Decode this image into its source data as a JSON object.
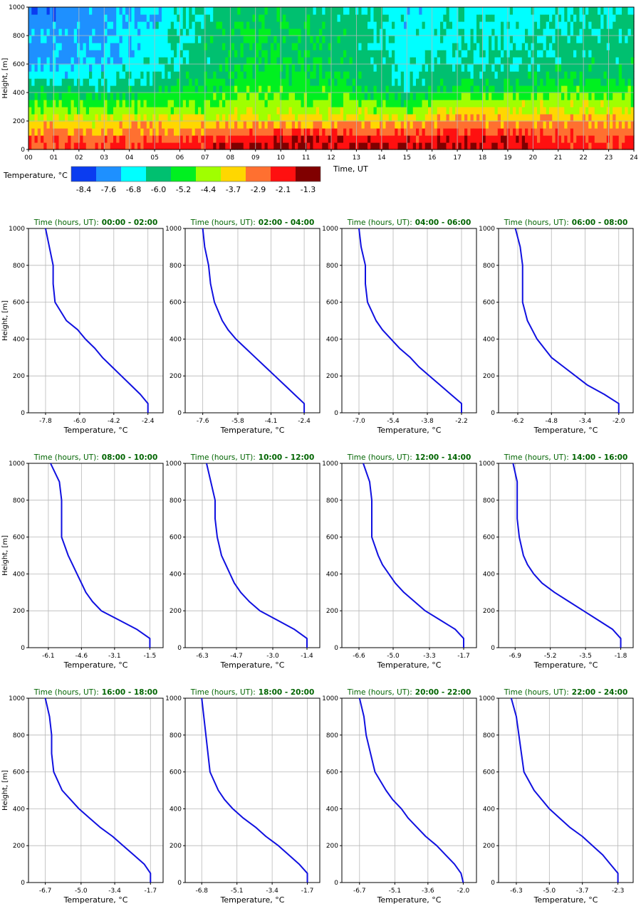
{
  "chart_data": [
    {
      "type": "heatmap",
      "ylabel": "Height, [m]",
      "xlabel": "Time, UT",
      "x_ticks": [
        "00",
        "01",
        "02",
        "03",
        "04",
        "05",
        "06",
        "07",
        "08",
        "09",
        "10",
        "11",
        "12",
        "13",
        "14",
        "15",
        "16",
        "17",
        "18",
        "19",
        "20",
        "21",
        "22",
        "23",
        "24"
      ],
      "y_ticks": [
        "0",
        "200",
        "400",
        "600",
        "800",
        "1000"
      ],
      "xlim": [
        0,
        24
      ],
      "ylim": [
        0,
        1000
      ],
      "grid": true,
      "colorbar": {
        "label": "Temperature, °C",
        "colors": [
          "#0a3cf0",
          "#1e90ff",
          "#00ffff",
          "#00c070",
          "#00f020",
          "#a0ff00",
          "#ffd700",
          "#ff7030",
          "#ff1010",
          "#800000"
        ],
        "tick_labels": [
          "-8.4",
          "-7.6",
          "-6.8",
          "-6.0",
          "-5.2",
          "-4.4",
          "-3.7",
          "-2.9",
          "-2.1",
          "-1.3"
        ]
      },
      "profile_hours": [
        1,
        3,
        5,
        7,
        9,
        11,
        13,
        15,
        17,
        19,
        21,
        23
      ],
      "heights": [
        0,
        50,
        100,
        150,
        200,
        250,
        300,
        350,
        400,
        450,
        500,
        600,
        700,
        800,
        900,
        1000
      ]
    },
    {
      "type": "line",
      "title_label": "Time (hours, UT):",
      "title_value": "00:00 - 02:00",
      "xlabel": "Temperature, °C",
      "ylabel": "Height, [m]",
      "x_ticks": [
        "-7.8",
        "-6.0",
        "-4.2",
        "-2.4"
      ],
      "xlim": [
        -8.7,
        -1.6
      ],
      "ylim": [
        0,
        1000
      ],
      "series": [
        {
          "name": "profile",
          "color": "#1010e0",
          "temperature": [
            -2.4,
            -2.4,
            -2.8,
            -3.3,
            -3.8,
            -4.3,
            -4.8,
            -5.2,
            -5.7,
            -6.1,
            -6.7,
            -7.3,
            -7.4,
            -7.4,
            -7.6,
            -7.8
          ],
          "height": [
            0,
            50,
            100,
            150,
            200,
            250,
            300,
            350,
            400,
            450,
            500,
            600,
            700,
            800,
            900,
            1000
          ]
        }
      ]
    },
    {
      "type": "line",
      "title_label": "Time (hours, UT):",
      "title_value": "02:00 - 04:00",
      "xlabel": "Temperature, °C",
      "ylabel": "Height, [m]",
      "x_ticks": [
        "-7.6",
        "-5.8",
        "-4.1",
        "-2.4"
      ],
      "xlim": [
        -8.5,
        -1.6
      ],
      "ylim": [
        0,
        1000
      ],
      "series": [
        {
          "name": "profile",
          "color": "#1010e0",
          "temperature": [
            -2.4,
            -2.4,
            -2.9,
            -3.4,
            -3.9,
            -4.4,
            -4.9,
            -5.4,
            -5.9,
            -6.3,
            -6.6,
            -7.0,
            -7.2,
            -7.3,
            -7.5,
            -7.6
          ],
          "height": [
            0,
            50,
            100,
            150,
            200,
            250,
            300,
            350,
            400,
            450,
            500,
            600,
            700,
            800,
            900,
            1000
          ]
        }
      ]
    },
    {
      "type": "line",
      "title_label": "Time (hours, UT):",
      "title_value": "04:00 - 06:00",
      "xlabel": "Temperature, °C",
      "ylabel": "Height, [m]",
      "x_ticks": [
        "-7.0",
        "-5.4",
        "-3.8",
        "-2.2"
      ],
      "xlim": [
        -7.8,
        -1.5
      ],
      "ylim": [
        0,
        1000
      ],
      "series": [
        {
          "name": "profile",
          "color": "#1010e0",
          "temperature": [
            -2.2,
            -2.2,
            -2.7,
            -3.2,
            -3.7,
            -4.2,
            -4.6,
            -5.1,
            -5.5,
            -5.9,
            -6.2,
            -6.6,
            -6.7,
            -6.7,
            -6.9,
            -7.0
          ],
          "height": [
            0,
            50,
            100,
            150,
            200,
            250,
            300,
            350,
            400,
            450,
            500,
            600,
            700,
            800,
            900,
            1000
          ]
        }
      ]
    },
    {
      "type": "line",
      "title_label": "Time (hours, UT):",
      "title_value": "06:00 - 08:00",
      "xlabel": "Temperature, °C",
      "ylabel": "Height, [m]",
      "x_ticks": [
        "-6.2",
        "-4.8",
        "-3.4",
        "-2.0"
      ],
      "xlim": [
        -7.0,
        -1.4
      ],
      "ylim": [
        0,
        1000
      ],
      "series": [
        {
          "name": "profile",
          "color": "#1010e0",
          "temperature": [
            -2.0,
            -2.0,
            -2.6,
            -3.3,
            -3.8,
            -4.3,
            -4.8,
            -5.1,
            -5.4,
            -5.6,
            -5.8,
            -6.0,
            -6.0,
            -6.0,
            -6.1,
            -6.3
          ],
          "height": [
            0,
            50,
            100,
            150,
            200,
            250,
            300,
            350,
            400,
            450,
            500,
            600,
            700,
            800,
            900,
            1000
          ]
        }
      ]
    },
    {
      "type": "line",
      "title_label": "Time (hours, UT):",
      "title_value": "08:00 - 10:00",
      "xlabel": "Temperature, °C",
      "ylabel": "Height, [m]",
      "x_ticks": [
        "-6.1",
        "-4.6",
        "-3.1",
        "-1.5"
      ],
      "xlim": [
        -7.0,
        -0.9
      ],
      "ylim": [
        0,
        1000
      ],
      "series": [
        {
          "name": "profile",
          "color": "#1010e0",
          "temperature": [
            -1.5,
            -1.5,
            -2.1,
            -2.9,
            -3.7,
            -4.1,
            -4.4,
            -4.6,
            -4.8,
            -5.0,
            -5.2,
            -5.5,
            -5.5,
            -5.5,
            -5.6,
            -6.0
          ],
          "height": [
            0,
            50,
            100,
            150,
            200,
            250,
            300,
            350,
            400,
            450,
            500,
            600,
            700,
            800,
            900,
            1000
          ]
        }
      ]
    },
    {
      "type": "line",
      "title_label": "Time (hours, UT):",
      "title_value": "10:00 - 12:00",
      "xlabel": "Temperature, °C",
      "ylabel": "Height, [m]",
      "x_ticks": [
        "-6.3",
        "-4.7",
        "-3.0",
        "-1.4"
      ],
      "xlim": [
        -7.1,
        -0.8
      ],
      "ylim": [
        0,
        1000
      ],
      "series": [
        {
          "name": "profile",
          "color": "#1010e0",
          "temperature": [
            -1.4,
            -1.4,
            -2.0,
            -2.8,
            -3.6,
            -4.1,
            -4.5,
            -4.8,
            -5.0,
            -5.2,
            -5.4,
            -5.6,
            -5.7,
            -5.7,
            -5.9,
            -6.1
          ],
          "height": [
            0,
            50,
            100,
            150,
            200,
            250,
            300,
            350,
            400,
            450,
            500,
            600,
            700,
            800,
            900,
            1000
          ]
        }
      ]
    },
    {
      "type": "line",
      "title_label": "Time (hours, UT):",
      "title_value": "12:00 - 14:00",
      "xlabel": "Temperature, °C",
      "ylabel": "Height, [m]",
      "x_ticks": [
        "-6.6",
        "-5.0",
        "-3.3",
        "-1.7"
      ],
      "xlim": [
        -7.4,
        -1.1
      ],
      "ylim": [
        0,
        1000
      ],
      "series": [
        {
          "name": "profile",
          "color": "#1010e0",
          "temperature": [
            -1.7,
            -1.7,
            -2.1,
            -2.8,
            -3.5,
            -4.0,
            -4.5,
            -4.9,
            -5.2,
            -5.5,
            -5.7,
            -6.0,
            -6.0,
            -6.0,
            -6.1,
            -6.4
          ],
          "height": [
            0,
            50,
            100,
            150,
            200,
            250,
            300,
            350,
            400,
            450,
            500,
            600,
            700,
            800,
            900,
            1000
          ]
        }
      ]
    },
    {
      "type": "line",
      "title_label": "Time (hours, UT):",
      "title_value": "14:00 - 16:00",
      "xlabel": "Temperature, °C",
      "ylabel": "Height, [m]",
      "x_ticks": [
        "-6.9",
        "-5.2",
        "-3.5",
        "-1.8"
      ],
      "xlim": [
        -7.7,
        -1.2
      ],
      "ylim": [
        0,
        1000
      ],
      "series": [
        {
          "name": "profile",
          "color": "#1010e0",
          "temperature": [
            -1.8,
            -1.8,
            -2.2,
            -2.9,
            -3.6,
            -4.3,
            -5.0,
            -5.6,
            -6.0,
            -6.3,
            -6.5,
            -6.7,
            -6.8,
            -6.8,
            -6.8,
            -7.0
          ],
          "height": [
            0,
            50,
            100,
            150,
            200,
            250,
            300,
            350,
            400,
            450,
            500,
            600,
            700,
            800,
            900,
            1000
          ]
        }
      ]
    },
    {
      "type": "line",
      "title_label": "Time (hours, UT):",
      "title_value": "16:00 - 18:00",
      "xlabel": "Temperature, °C",
      "ylabel": "Height, [m]",
      "x_ticks": [
        "-6.7",
        "-5.0",
        "-3.4",
        "-1.7"
      ],
      "xlim": [
        -7.5,
        -1.1
      ],
      "ylim": [
        0,
        1000
      ],
      "series": [
        {
          "name": "profile",
          "color": "#1010e0",
          "temperature": [
            -1.7,
            -1.7,
            -2.0,
            -2.5,
            -3.0,
            -3.5,
            -4.1,
            -4.6,
            -5.1,
            -5.5,
            -5.9,
            -6.3,
            -6.4,
            -6.4,
            -6.5,
            -6.7
          ],
          "height": [
            0,
            50,
            100,
            150,
            200,
            250,
            300,
            350,
            400,
            450,
            500,
            600,
            700,
            800,
            900,
            1000
          ]
        }
      ]
    },
    {
      "type": "line",
      "title_label": "Time (hours, UT):",
      "title_value": "18:00 - 20:00",
      "xlabel": "Temperature, °C",
      "ylabel": "Height, [m]",
      "x_ticks": [
        "-6.8",
        "-5.1",
        "-3.4",
        "-1.7"
      ],
      "xlim": [
        -7.6,
        -1.1
      ],
      "ylim": [
        0,
        1000
      ],
      "series": [
        {
          "name": "profile",
          "color": "#1010e0",
          "temperature": [
            -1.7,
            -1.7,
            -2.1,
            -2.6,
            -3.1,
            -3.7,
            -4.2,
            -4.8,
            -5.3,
            -5.7,
            -6.0,
            -6.4,
            -6.5,
            -6.6,
            -6.7,
            -6.8
          ],
          "height": [
            0,
            50,
            100,
            150,
            200,
            250,
            300,
            350,
            400,
            450,
            500,
            600,
            700,
            800,
            900,
            1000
          ]
        }
      ]
    },
    {
      "type": "line",
      "title_label": "Time (hours, UT):",
      "title_value": "20:00 - 22:00",
      "xlabel": "Temperature, °C",
      "ylabel": "Height, [m]",
      "x_ticks": [
        "-6.7",
        "-5.1",
        "-3.6",
        "-2.0"
      ],
      "xlim": [
        -7.5,
        -1.4
      ],
      "ylim": [
        0,
        1000
      ],
      "series": [
        {
          "name": "profile",
          "color": "#1010e0",
          "temperature": [
            -2.0,
            -2.1,
            -2.4,
            -2.8,
            -3.2,
            -3.7,
            -4.1,
            -4.5,
            -4.8,
            -5.2,
            -5.5,
            -6.0,
            -6.2,
            -6.4,
            -6.5,
            -6.7
          ],
          "height": [
            0,
            50,
            100,
            150,
            200,
            250,
            300,
            350,
            400,
            450,
            500,
            600,
            700,
            800,
            900,
            1000
          ]
        }
      ]
    },
    {
      "type": "line",
      "title_label": "Time (hours, UT):",
      "title_value": "22:00 - 24:00",
      "xlabel": "Temperature, °C",
      "ylabel": "Height, [m]",
      "x_ticks": [
        "-6.3",
        "-5.0",
        "-3.7",
        "-2.3"
      ],
      "xlim": [
        -7.0,
        -1.7
      ],
      "ylim": [
        0,
        1000
      ],
      "series": [
        {
          "name": "profile",
          "color": "#1010e0",
          "temperature": [
            -2.3,
            -2.3,
            -2.6,
            -2.9,
            -3.3,
            -3.7,
            -4.2,
            -4.6,
            -5.0,
            -5.3,
            -5.6,
            -6.0,
            -6.1,
            -6.2,
            -6.3,
            -6.5
          ],
          "height": [
            0,
            50,
            100,
            150,
            200,
            250,
            300,
            350,
            400,
            450,
            500,
            600,
            700,
            800,
            900,
            1000
          ]
        }
      ]
    }
  ],
  "y_ticks": [
    "0",
    "200",
    "400",
    "600",
    "800",
    "1000"
  ]
}
